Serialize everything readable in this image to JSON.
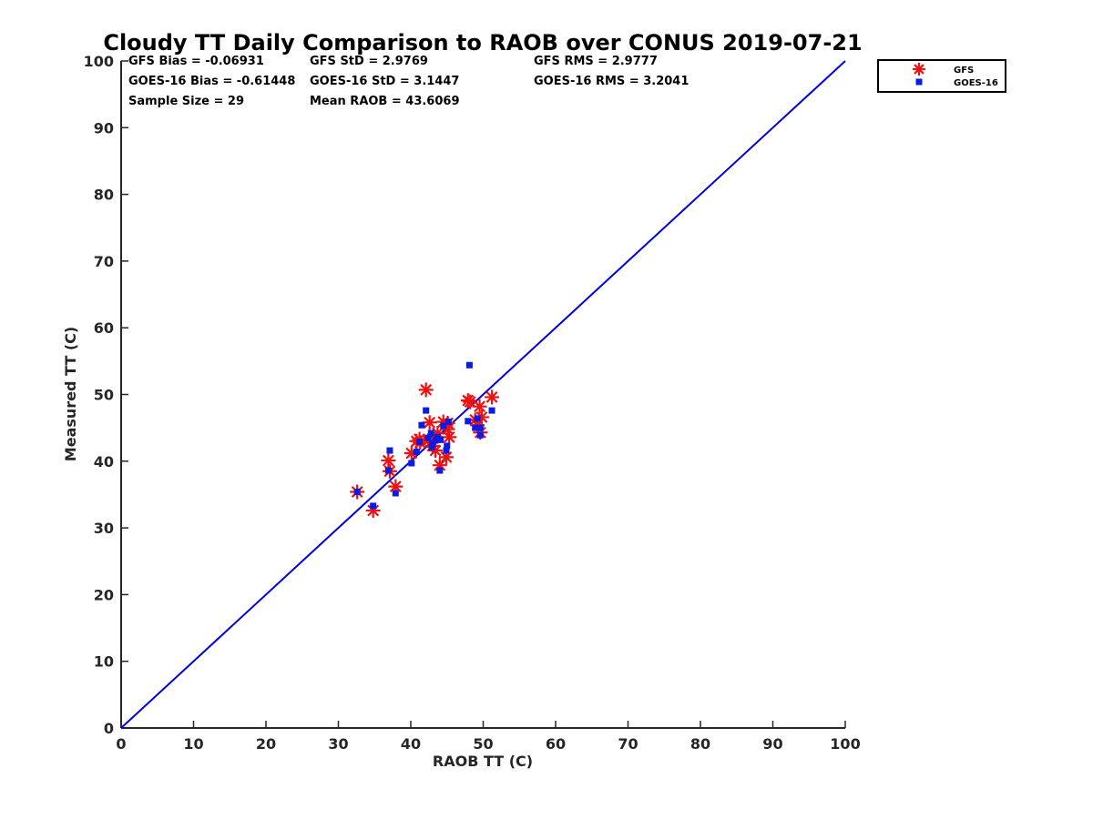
{
  "chart_data": {
    "type": "scatter",
    "title": "Cloudy TT Daily Comparison to RAOB over CONUS 2019-07-21",
    "xlabel": "RAOB TT (C)",
    "ylabel": "Measured TT (C)",
    "xlim": [
      0,
      100
    ],
    "ylim": [
      0,
      100
    ],
    "xticks": [
      0,
      10,
      20,
      30,
      40,
      50,
      60,
      70,
      80,
      90,
      100
    ],
    "yticks": [
      0,
      10,
      20,
      30,
      40,
      50,
      60,
      70,
      80,
      90,
      100
    ],
    "grid": false,
    "legend_position": "top-right, outside plot",
    "reference_line": {
      "x": [
        0,
        100
      ],
      "y": [
        0,
        100
      ],
      "color": "#0000dd"
    },
    "stats": [
      [
        "GFS Bias = -0.06931",
        "GFS StD = 2.9769",
        "GFS RMS = 2.9777"
      ],
      [
        "GOES-16 Bias = -0.61448",
        "GOES-16 StD = 3.1447",
        "GOES-16 RMS = 3.2041"
      ],
      [
        "Sample Size = 29",
        "Mean RAOB = 43.6069",
        ""
      ]
    ],
    "series": [
      {
        "name": "GFS",
        "marker": "asterisk",
        "color": "#ee1111",
        "points": [
          [
            32.6,
            35.4
          ],
          [
            34.8,
            32.6
          ],
          [
            36.9,
            40.1
          ],
          [
            37.1,
            38.5
          ],
          [
            37.9,
            36.2
          ],
          [
            40.1,
            41.2
          ],
          [
            40.8,
            43.0
          ],
          [
            41.2,
            43.3
          ],
          [
            41.3,
            42.8
          ],
          [
            42.1,
            50.7
          ],
          [
            42.6,
            45.8
          ],
          [
            43.0,
            42.3
          ],
          [
            43.4,
            41.6
          ],
          [
            43.7,
            44.2
          ],
          [
            44.0,
            39.4
          ],
          [
            44.5,
            45.9
          ],
          [
            44.9,
            40.6
          ],
          [
            45.1,
            44.8
          ],
          [
            45.3,
            43.6
          ],
          [
            47.9,
            49.1
          ],
          [
            48.2,
            48.9
          ],
          [
            48.9,
            46.2
          ],
          [
            49.2,
            45.4
          ],
          [
            49.5,
            48.2
          ],
          [
            49.6,
            44.3
          ],
          [
            49.8,
            46.6
          ],
          [
            51.2,
            49.6
          ],
          [
            42.4,
            43.1
          ],
          [
            45.1,
            45.7
          ]
        ]
      },
      {
        "name": "GOES-16",
        "marker": "square",
        "color": "#0a1be6",
        "points": [
          [
            32.6,
            35.4
          ],
          [
            34.8,
            33.3
          ],
          [
            36.9,
            38.6
          ],
          [
            37.1,
            41.6
          ],
          [
            37.9,
            35.2
          ],
          [
            40.1,
            39.7
          ],
          [
            40.8,
            41.4
          ],
          [
            41.2,
            42.9
          ],
          [
            41.5,
            45.4
          ],
          [
            42.1,
            47.6
          ],
          [
            42.4,
            43.5
          ],
          [
            42.8,
            44.2
          ],
          [
            43.0,
            42.6
          ],
          [
            43.4,
            43.1
          ],
          [
            43.7,
            43.6
          ],
          [
            44.0,
            38.6
          ],
          [
            44.5,
            45.3
          ],
          [
            44.9,
            41.6
          ],
          [
            45.0,
            42.3
          ],
          [
            45.2,
            45.9
          ],
          [
            47.9,
            46.0
          ],
          [
            48.1,
            54.4
          ],
          [
            48.9,
            45.0
          ],
          [
            49.2,
            46.4
          ],
          [
            49.6,
            43.9
          ],
          [
            49.6,
            45.0
          ],
          [
            51.2,
            47.6
          ],
          [
            44.1,
            43.2
          ],
          [
            42.9,
            42.1
          ]
        ]
      }
    ]
  }
}
